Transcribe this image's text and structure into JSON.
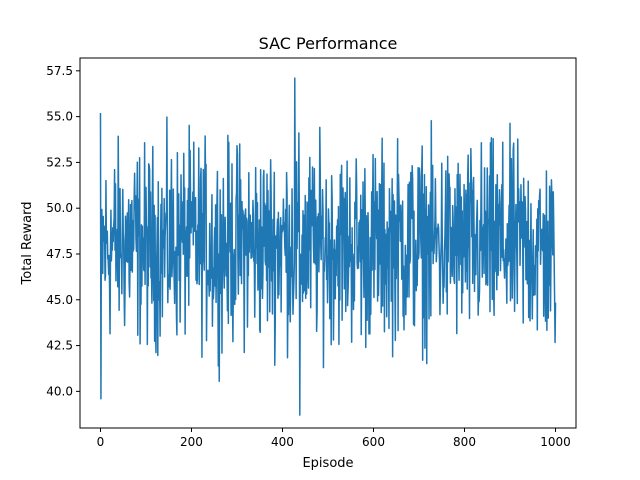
{
  "chart_data": {
    "type": "line",
    "title": "SAC Performance",
    "xlabel": "Episode",
    "ylabel": "Total Reward",
    "xlim": [
      -45,
      1045
    ],
    "ylim": [
      38.0,
      58.2
    ],
    "xticks": [
      0,
      200,
      400,
      600,
      800,
      1000
    ],
    "xtick_labels": [
      "0",
      "200",
      "400",
      "600",
      "800",
      "1000"
    ],
    "yticks": [
      40.0,
      42.5,
      45.0,
      47.5,
      50.0,
      52.5,
      55.0,
      57.5
    ],
    "ytick_labels": [
      "40.0",
      "42.5",
      "45.0",
      "47.5",
      "50.0",
      "52.5",
      "55.0",
      "57.5"
    ],
    "grid": false,
    "series": [
      {
        "color": "#1f77b4",
        "x": [
          0,
          50,
          100,
          150,
          200,
          250,
          300,
          350,
          400,
          450,
          500,
          550,
          600,
          650,
          700,
          750,
          800,
          850,
          900,
          950,
          1000
        ],
        "y": [
          47.8,
          48.2,
          47.9,
          48.0,
          48.3,
          47.9,
          48.1,
          48.0,
          48.2,
          47.9,
          48.1,
          48.0,
          47.9,
          48.2,
          48.0,
          48.1,
          47.9,
          48.0,
          48.1,
          47.9,
          47.3
        ],
        "y_max": 57.1,
        "y_min": 38.7
      }
    ]
  }
}
